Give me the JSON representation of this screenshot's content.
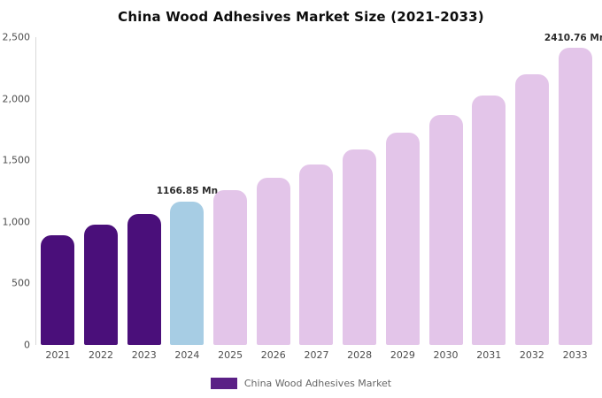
{
  "chart_data": {
    "type": "bar",
    "title": "China Wood Adhesives Market Size (2021-2033)",
    "categories": [
      "2021",
      "2022",
      "2023",
      "2024",
      "2025",
      "2026",
      "2027",
      "2028",
      "2029",
      "2030",
      "2031",
      "2032",
      "2033"
    ],
    "values": [
      890,
      980,
      1060,
      1166.85,
      1255,
      1355,
      1465,
      1590,
      1725,
      1865,
      2025,
      2200,
      2410.76
    ],
    "unit": "Mn",
    "bar_colors": [
      "#4a0f7a",
      "#4a0f7a",
      "#4a0f7a",
      "#a7cde4",
      "#e3c5e9",
      "#e3c5e9",
      "#e3c5e9",
      "#e3c5e9",
      "#e3c5e9",
      "#e3c5e9",
      "#e3c5e9",
      "#e3c5e9",
      "#e3c5e9"
    ],
    "ylim": [
      0,
      2500
    ],
    "yticks": [
      {
        "value": 0,
        "label": "0"
      },
      {
        "value": 500,
        "label": "500"
      },
      {
        "value": 1000,
        "label": "1,000"
      },
      {
        "value": 1500,
        "label": "1,500"
      },
      {
        "value": 2000,
        "label": "2,000"
      },
      {
        "value": 2500,
        "label": "2,500"
      }
    ],
    "xlabel": "",
    "ylabel": "",
    "grid": false,
    "annotations": [
      {
        "category": "2024",
        "text": "1166.85 Mn"
      },
      {
        "category": "2033",
        "text": "2410.76 Mn"
      }
    ],
    "legend": {
      "position": "bottom",
      "label": "China Wood Adhesives Market",
      "swatch_color": "#5b2086"
    }
  }
}
